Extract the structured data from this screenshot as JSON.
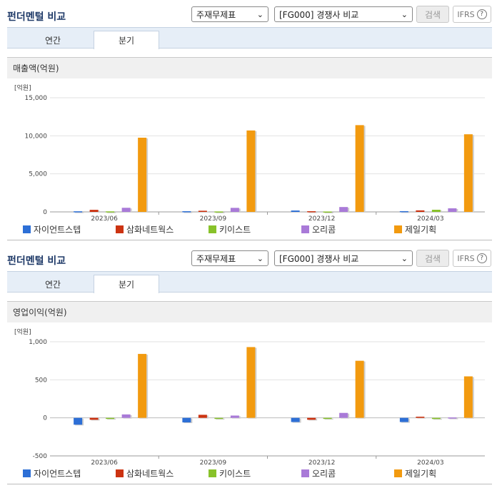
{
  "panels": [
    {
      "title": "펀더멘털 비교",
      "select1": "주재무제표",
      "select2": "[FG000] 경쟁사 비교",
      "search_label": "검색",
      "ifrs_label": "IFRS",
      "ifrs_help": "?",
      "tabs": [
        "연간",
        "분기"
      ],
      "active_tab": "분기",
      "section_title": "매출액(억원)",
      "legend": [
        "자이언트스텝",
        "삼화네트웍스",
        "키이스트",
        "오리콤",
        "제일기획"
      ]
    },
    {
      "title": "펀더멘털 비교",
      "select1": "주재무제표",
      "select2": "[FG000] 경쟁사 비교",
      "search_label": "검색",
      "ifrs_label": "IFRS",
      "ifrs_help": "?",
      "tabs": [
        "연간",
        "분기"
      ],
      "active_tab": "분기",
      "section_title": "영업이익(억원)",
      "legend": [
        "자이언트스텝",
        "삼화네트웍스",
        "키이스트",
        "오리콤",
        "제일기획"
      ]
    }
  ],
  "colors": {
    "series": [
      "#2d6fd6",
      "#cc3311",
      "#88c22a",
      "#a97ad8",
      "#f29a0f"
    ]
  },
  "chart_data": [
    {
      "type": "bar",
      "title": "매출액(억원)",
      "unit_label": "[억원]",
      "categories": [
        "2023/06",
        "2023/09",
        "2023/12",
        "2024/03"
      ],
      "ylim": [
        0,
        15000
      ],
      "yticks": [
        0,
        5000,
        10000,
        15000
      ],
      "ytick_labels": [
        "0",
        "5,000",
        "10,000",
        "15,000"
      ],
      "grid": true,
      "legend_position": "bottom",
      "series": [
        {
          "name": "자이언트스텝",
          "values": [
            80,
            90,
            180,
            100
          ]
        },
        {
          "name": "삼화네트웍스",
          "values": [
            270,
            150,
            90,
            200
          ]
        },
        {
          "name": "키이스트",
          "values": [
            70,
            60,
            50,
            280
          ]
        },
        {
          "name": "오리콤",
          "values": [
            540,
            530,
            640,
            470
          ]
        },
        {
          "name": "제일기획",
          "values": [
            9750,
            10700,
            11400,
            10200
          ]
        }
      ]
    },
    {
      "type": "bar",
      "title": "영업이익(억원)",
      "unit_label": "[억원]",
      "categories": [
        "2023/06",
        "2023/09",
        "2023/12",
        "2024/03"
      ],
      "ylim": [
        -500,
        1000
      ],
      "yticks": [
        -500,
        0,
        500,
        1000
      ],
      "ytick_labels": [
        "-500",
        "0",
        "500",
        "1,000"
      ],
      "grid": true,
      "legend_position": "bottom",
      "series": [
        {
          "name": "자이언트스텝",
          "values": [
            -90,
            -60,
            -55,
            -55
          ]
        },
        {
          "name": "삼화네트웍스",
          "values": [
            -25,
            40,
            -25,
            15
          ]
        },
        {
          "name": "키이스트",
          "values": [
            -10,
            -5,
            -5,
            -15
          ]
        },
        {
          "name": "오리콤",
          "values": [
            45,
            30,
            65,
            5
          ]
        },
        {
          "name": "제일기획",
          "values": [
            840,
            930,
            750,
            545
          ]
        }
      ]
    }
  ]
}
